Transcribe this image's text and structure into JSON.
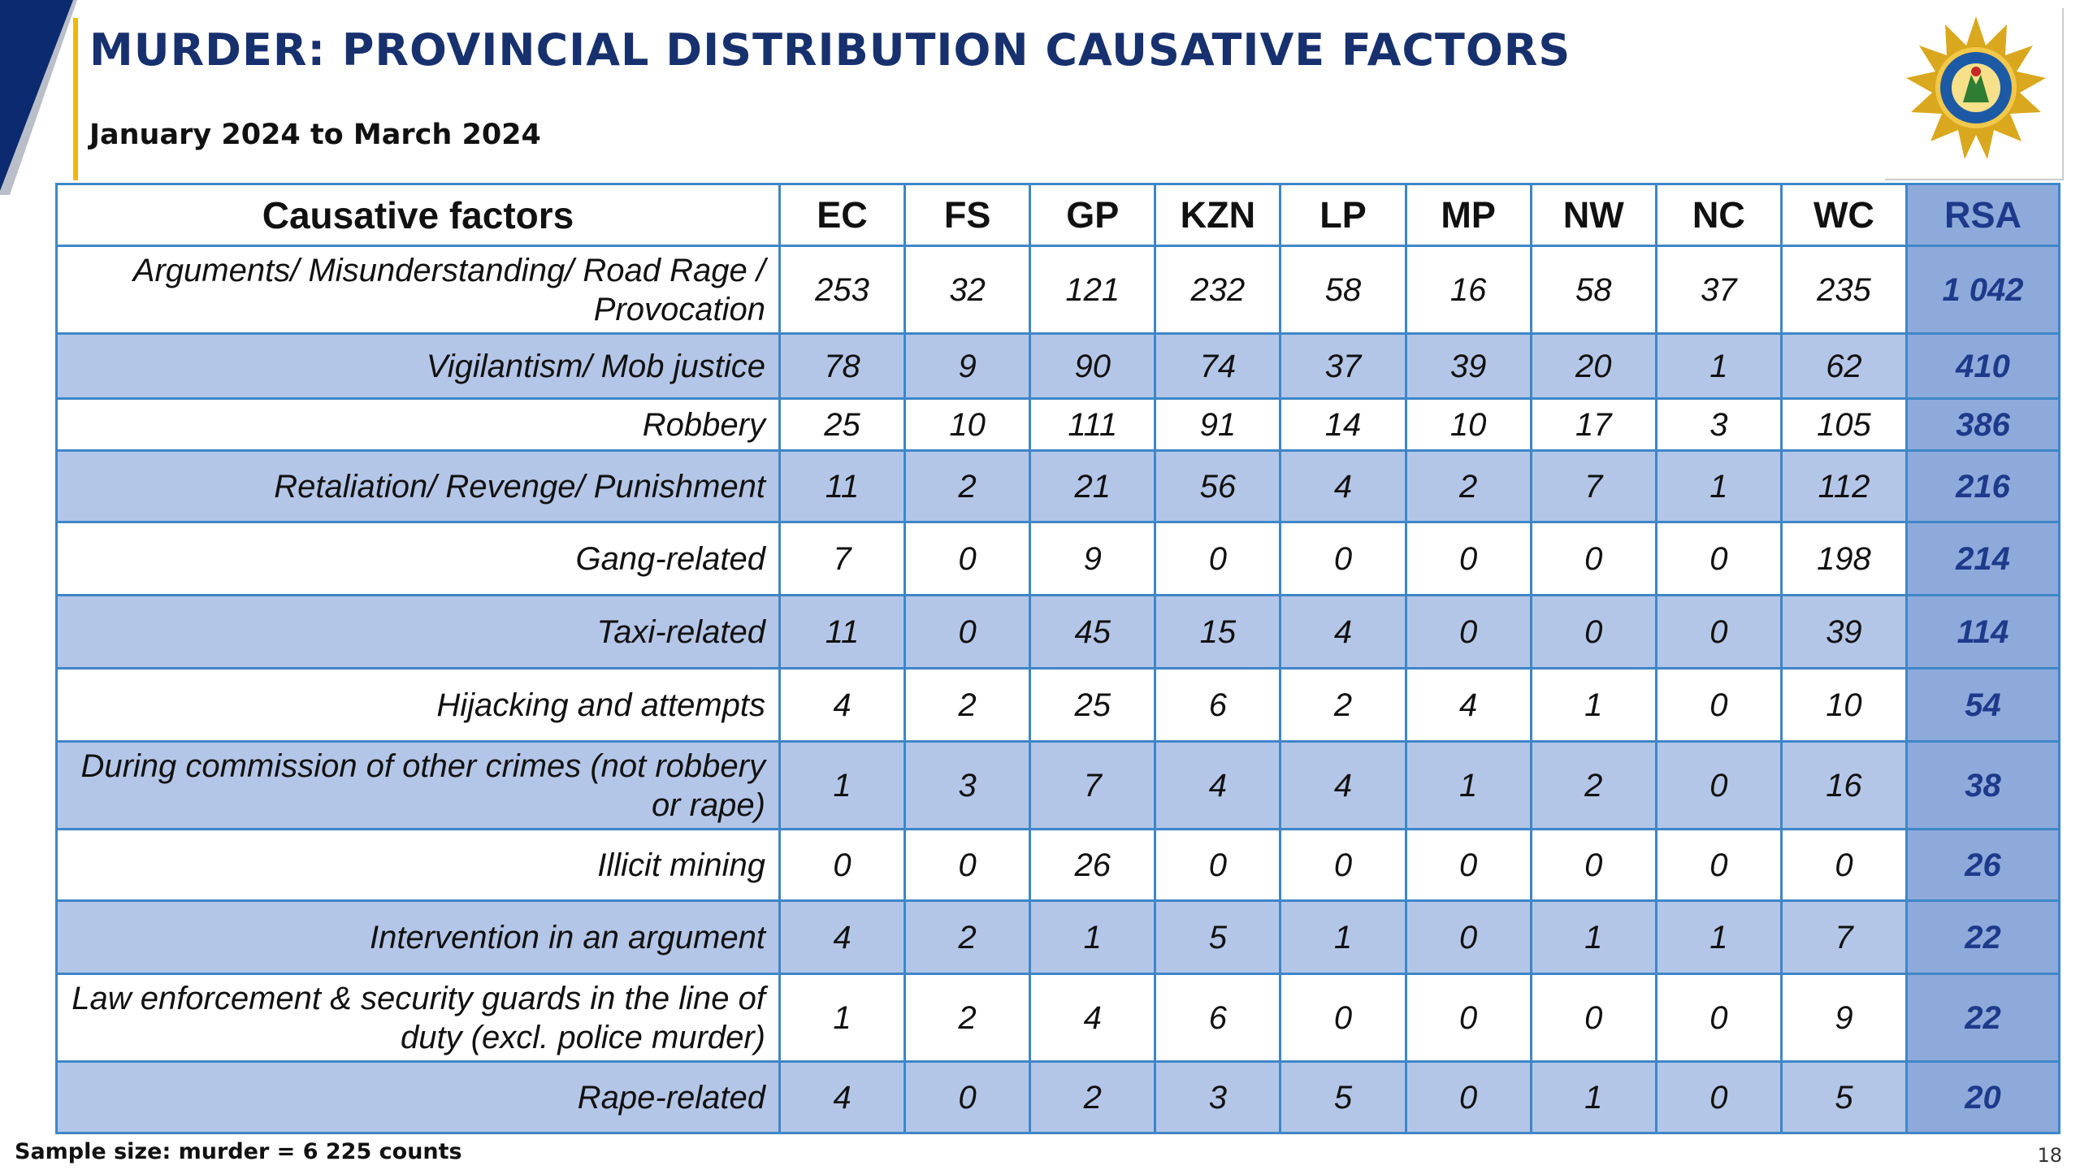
{
  "header": {
    "title": "MURDER: PROVINCIAL DISTRIBUTION CAUSATIVE FACTORS",
    "subtitle": "January 2024 to March 2024"
  },
  "logo": {
    "icon": "saps-star-emblem-icon"
  },
  "table": {
    "columns": [
      "Causative factors",
      "EC",
      "FS",
      "GP",
      "KZN",
      "LP",
      "MP",
      "NW",
      "NC",
      "WC",
      "RSA"
    ],
    "rows": [
      {
        "factor": "Arguments/ Misunderstanding/ Road Rage / Provocation",
        "values": [
          "253",
          "32",
          "121",
          "232",
          "58",
          "16",
          "58",
          "37",
          "235"
        ],
        "rsa": "1 042"
      },
      {
        "factor": "Vigilantism/ Mob justice",
        "values": [
          "78",
          "9",
          "90",
          "74",
          "37",
          "39",
          "20",
          "1",
          "62"
        ],
        "rsa": "410"
      },
      {
        "factor": "Robbery",
        "values": [
          "25",
          "10",
          "111",
          "91",
          "14",
          "10",
          "17",
          "3",
          "105"
        ],
        "rsa": "386"
      },
      {
        "factor": "Retaliation/ Revenge/ Punishment",
        "values": [
          "11",
          "2",
          "21",
          "56",
          "4",
          "2",
          "7",
          "1",
          "112"
        ],
        "rsa": "216"
      },
      {
        "factor": "Gang-related",
        "values": [
          "7",
          "0",
          "9",
          "0",
          "0",
          "0",
          "0",
          "0",
          "198"
        ],
        "rsa": "214"
      },
      {
        "factor": "Taxi-related",
        "values": [
          "11",
          "0",
          "45",
          "15",
          "4",
          "0",
          "0",
          "0",
          "39"
        ],
        "rsa": "114"
      },
      {
        "factor": "Hijacking and attempts",
        "values": [
          "4",
          "2",
          "25",
          "6",
          "2",
          "4",
          "1",
          "0",
          "10"
        ],
        "rsa": "54"
      },
      {
        "factor": "During commission of other crimes (not robbery or rape)",
        "values": [
          "1",
          "3",
          "7",
          "4",
          "4",
          "1",
          "2",
          "0",
          "16"
        ],
        "rsa": "38"
      },
      {
        "factor": "Illicit mining",
        "values": [
          "0",
          "0",
          "26",
          "0",
          "0",
          "0",
          "0",
          "0",
          "0"
        ],
        "rsa": "26"
      },
      {
        "factor": "Intervention in an argument",
        "values": [
          "4",
          "2",
          "1",
          "5",
          "1",
          "0",
          "1",
          "1",
          "7"
        ],
        "rsa": "22"
      },
      {
        "factor": "Law enforcement & security guards in the line of duty (excl. police murder)",
        "values": [
          "1",
          "2",
          "4",
          "6",
          "0",
          "0",
          "0",
          "0",
          "9"
        ],
        "rsa": "22"
      },
      {
        "factor": "Rape-related",
        "values": [
          "4",
          "0",
          "2",
          "3",
          "5",
          "0",
          "1",
          "0",
          "5"
        ],
        "rsa": "20"
      }
    ]
  },
  "footer": {
    "sample_size": "Sample size: murder = 6 225 counts",
    "page_number": "18"
  }
}
